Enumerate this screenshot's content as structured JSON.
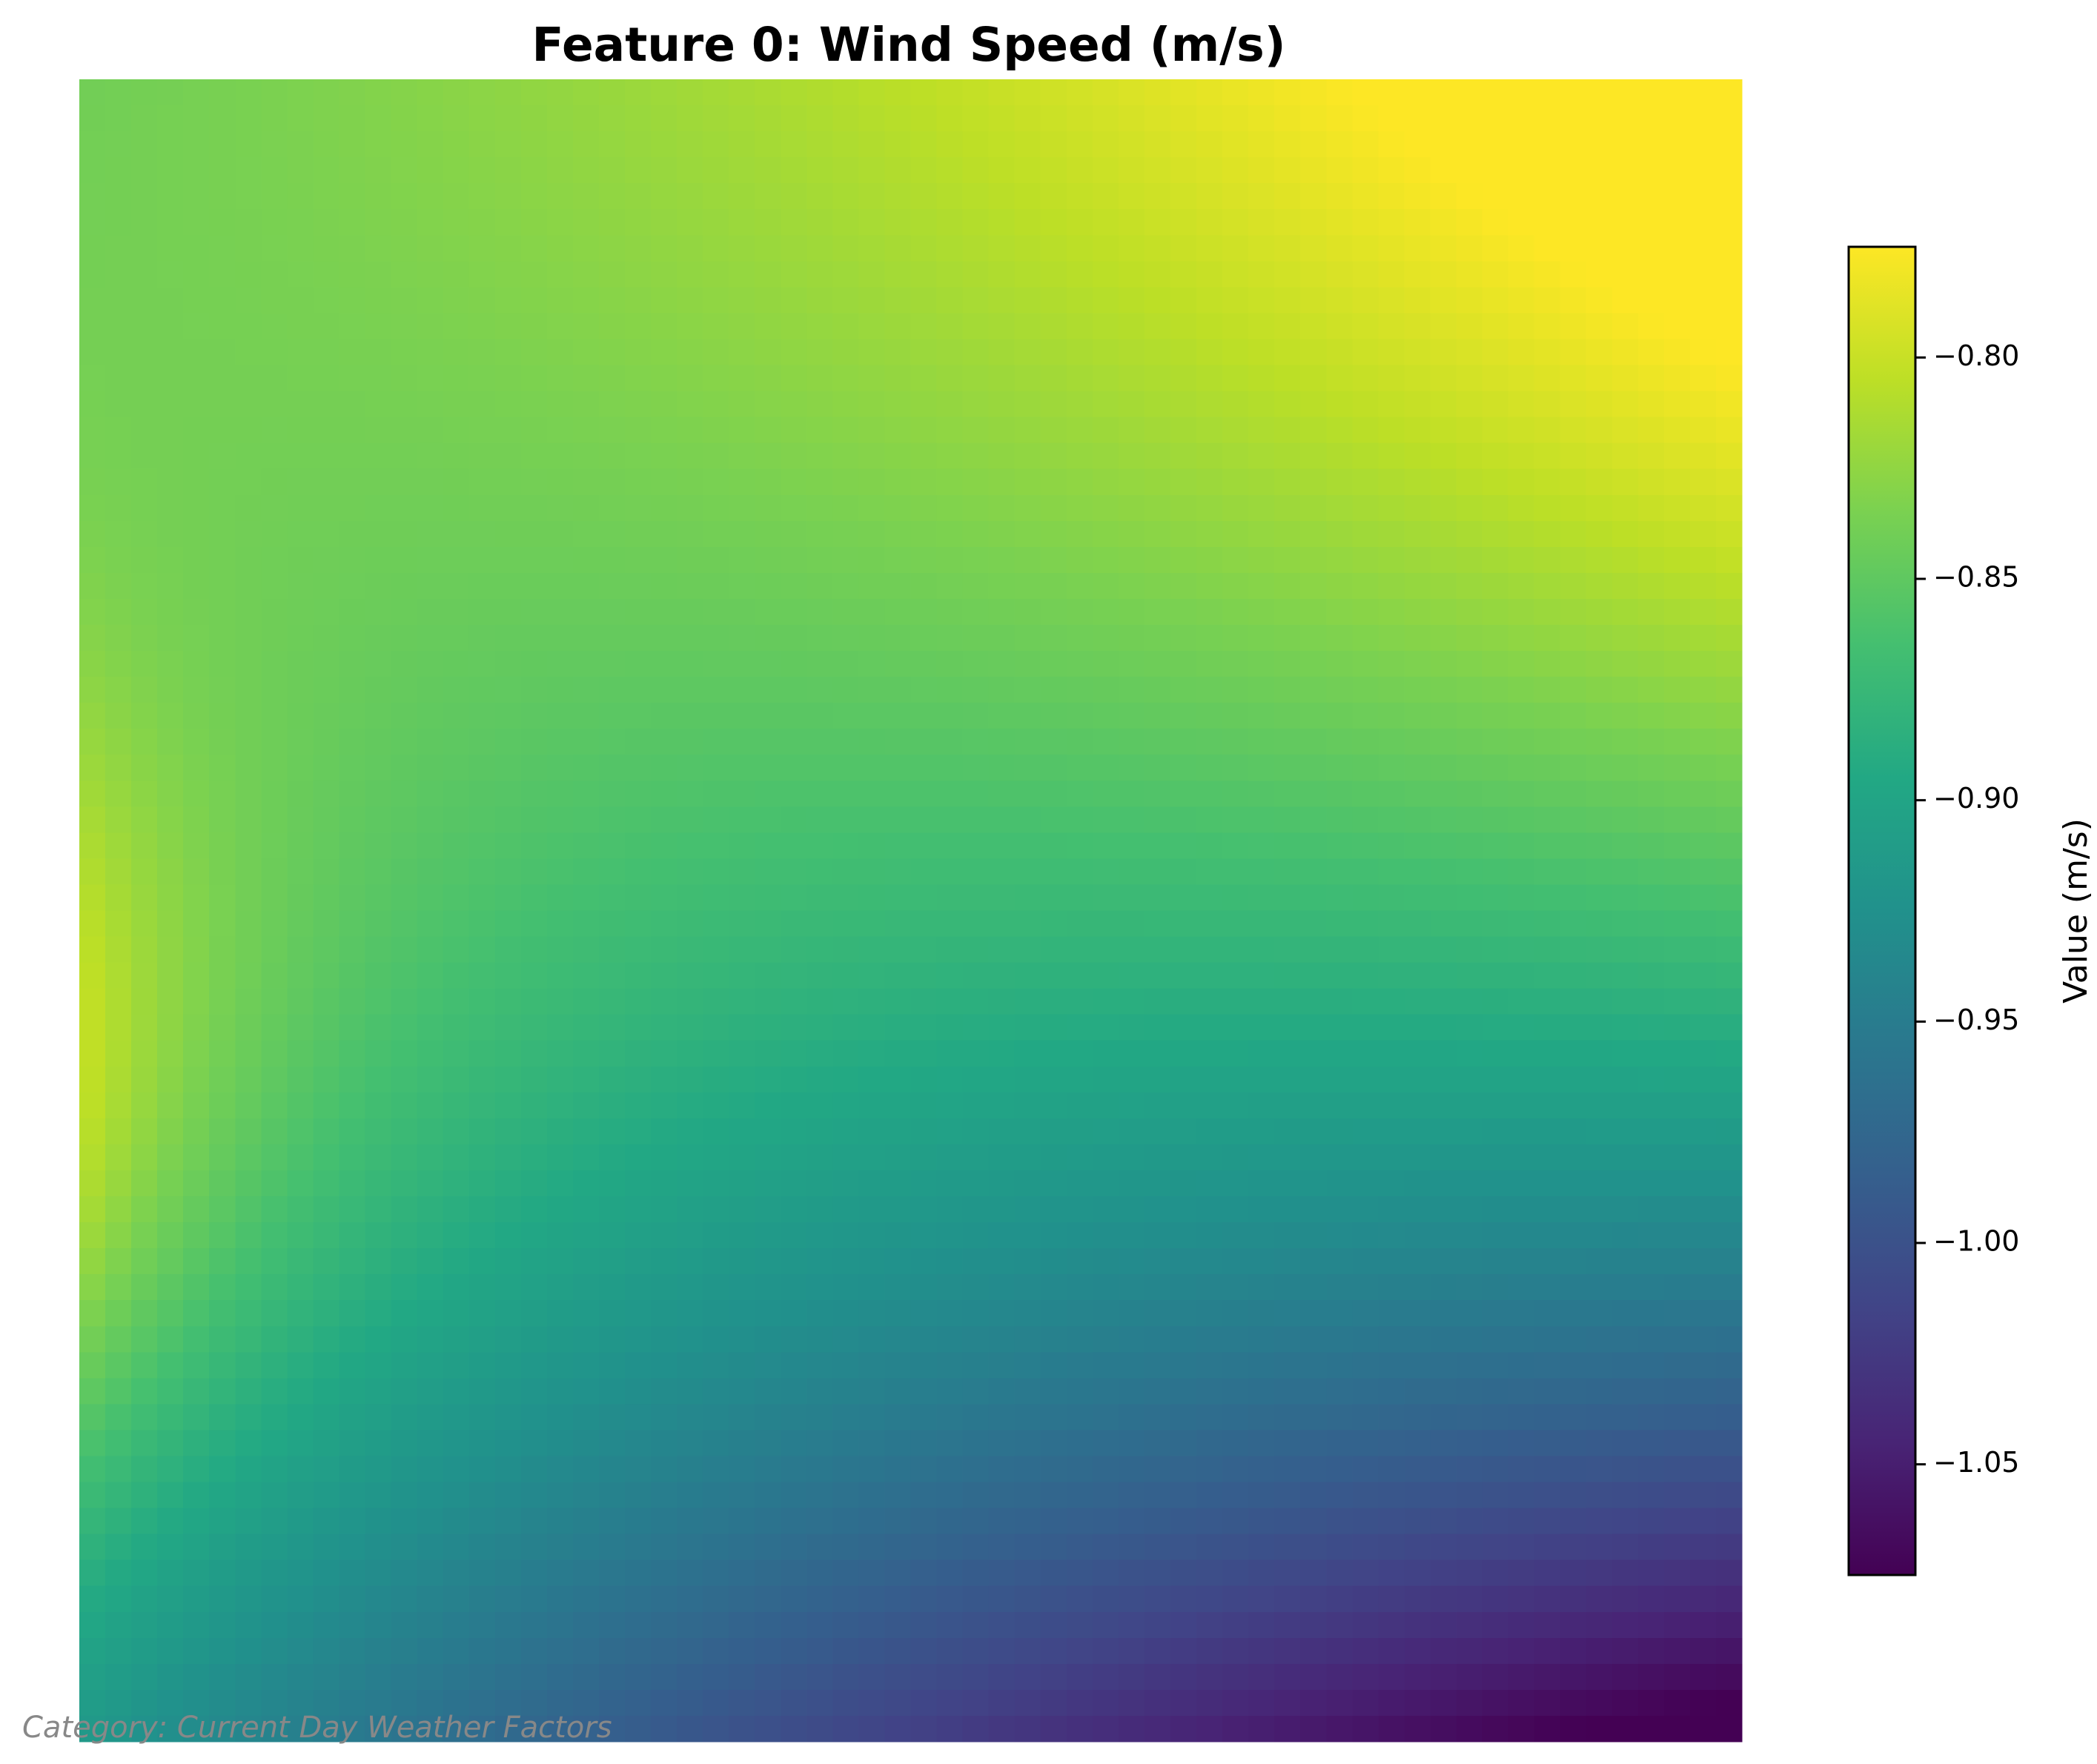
{
  "chart_data": {
    "type": "heatmap",
    "title": "Feature 0: Wind Speed (m/s)",
    "colormap": "viridis",
    "grid": false,
    "axes_visible": false,
    "grid_size": [
      64,
      64
    ],
    "field_estimate": {
      "description": "Smooth field: highest (~-0.775) at left edge around 60% height, lowest (~-1.075) at bottom-right corner; values read from colorbar.",
      "min": -1.075,
      "max": -0.775,
      "samples": [
        {
          "x": 0.0,
          "y": 0.0,
          "value": -0.84
        },
        {
          "x": 0.5,
          "y": 0.0,
          "value": -0.83
        },
        {
          "x": 1.0,
          "y": 0.0,
          "value": -0.8
        },
        {
          "x": 0.0,
          "y": 0.6,
          "value": -0.775
        },
        {
          "x": 0.5,
          "y": 0.5,
          "value": -0.93
        },
        {
          "x": 1.0,
          "y": 0.5,
          "value": -0.86
        },
        {
          "x": 0.0,
          "y": 1.0,
          "value": -0.94
        },
        {
          "x": 0.5,
          "y": 1.0,
          "value": -1.02
        },
        {
          "x": 0.85,
          "y": 1.0,
          "value": -1.075
        },
        {
          "x": 1.0,
          "y": 1.0,
          "value": -1.07
        }
      ]
    },
    "colorbar": {
      "label": "Value (m/s)",
      "range": [
        -1.075,
        -0.775
      ],
      "ticks": [
        -0.8,
        -0.85,
        -0.9,
        -0.95,
        -1.0,
        -1.05
      ],
      "tick_labels": [
        "−0.80",
        "−0.85",
        "−0.90",
        "−0.95",
        "−1.00",
        "−1.05"
      ]
    }
  },
  "footnote": "Category: Current Day Weather Factors"
}
